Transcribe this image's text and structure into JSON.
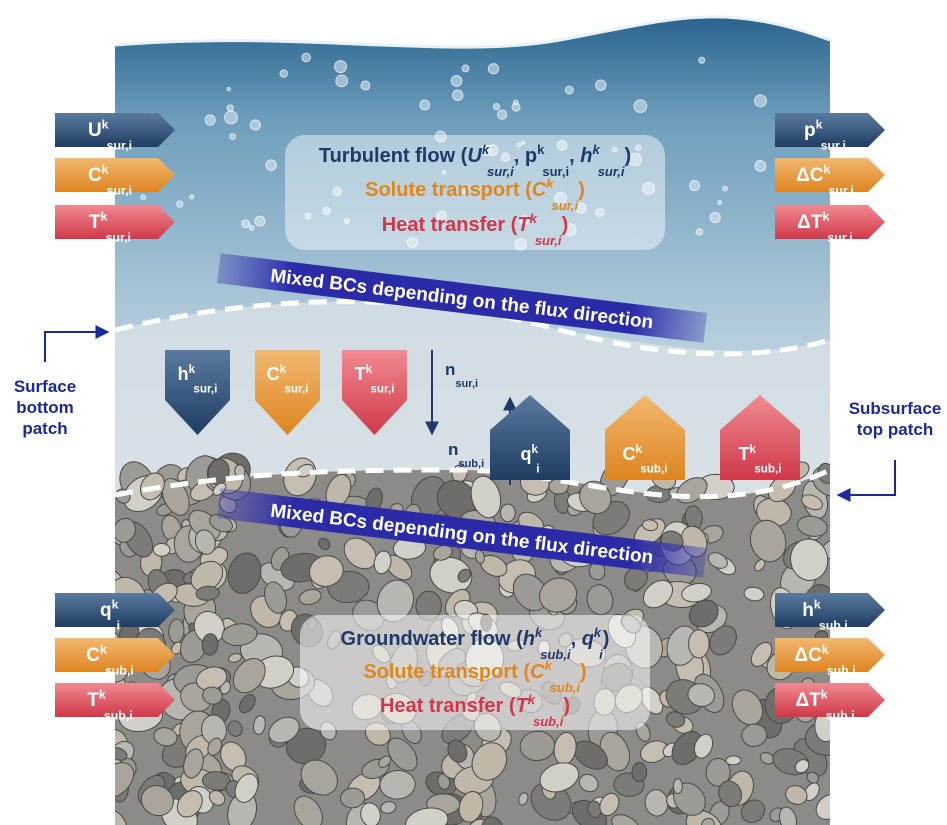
{
  "surface": {
    "left": [
      {
        "base": "U",
        "sup": "k",
        "sub": "sur,i"
      },
      {
        "base": "C",
        "sup": "k",
        "sub": "sur,i"
      },
      {
        "base": "T",
        "sup": "k",
        "sub": "sur,i"
      }
    ],
    "right": [
      {
        "base": "p",
        "sup": "k",
        "sub": "sur,i"
      },
      {
        "base": "ΔC",
        "sup": "k",
        "sub": "sur,i"
      },
      {
        "base": "ΔT",
        "sup": "k",
        "sub": "sur,i"
      }
    ],
    "lines": [
      {
        "segments": [
          "Turbulent flow (",
          {
            "base": "U",
            "sup": "k",
            "sub": "sur,i",
            "italic": true
          },
          ", ",
          {
            "base": "p",
            "sup": "k",
            "sub": "sur,i"
          },
          ", ",
          {
            "base": "h",
            "sup": "k",
            "sub": "sur,i",
            "italic": true
          },
          ")"
        ]
      },
      {
        "segments": [
          "Solute transport (",
          {
            "base": "C",
            "sup": "k",
            "sub": "sur,i",
            "italic": true
          },
          ")"
        ]
      },
      {
        "segments": [
          "Heat transfer (",
          {
            "base": "T",
            "sup": "k",
            "sub": "sur,i",
            "italic": true
          },
          ")"
        ]
      }
    ]
  },
  "interface": {
    "band_top": "Mixed BCs depending on the flux direction",
    "band_bottom": "Mixed BCs depending on the flux direction",
    "surface_side": [
      {
        "base": "h",
        "sup": "k",
        "sub": "sur,i"
      },
      {
        "base": "C",
        "sup": "k",
        "sub": "sur,i"
      },
      {
        "base": "T",
        "sup": "k",
        "sub": "sur,i"
      }
    ],
    "subsurface_side": [
      {
        "base": "q",
        "sup": "k",
        "sub": "i"
      },
      {
        "base": "C",
        "sup": "k",
        "sub": "sub,i"
      },
      {
        "base": "T",
        "sup": "k",
        "sub": "sub,i"
      }
    ],
    "normal_sur": {
      "base": "n",
      "sub": "sur,i"
    },
    "normal_sub": {
      "base": "n",
      "sub": "sub,i"
    }
  },
  "labels": {
    "surface_patch": [
      "Surface",
      "bottom",
      "patch"
    ],
    "subsurface_patch": [
      "Subsurface",
      "top patch"
    ]
  },
  "subsurface": {
    "left": [
      {
        "base": "q",
        "sup": "k",
        "sub": "i"
      },
      {
        "base": "C",
        "sup": "k",
        "sub": "sub,i"
      },
      {
        "base": "T",
        "sup": "k",
        "sub": "sub,i"
      }
    ],
    "right": [
      {
        "base": "h",
        "sup": "k",
        "sub": "sub,i"
      },
      {
        "base": "ΔC",
        "sup": "k",
        "sub": "sub,i"
      },
      {
        "base": "ΔT",
        "sup": "k",
        "sub": "sub,i"
      }
    ],
    "lines": [
      {
        "segments": [
          "Groundwater flow (",
          {
            "base": "h",
            "sup": "k",
            "sub": "sub,i",
            "italic": true
          },
          ", ",
          {
            "base": "q",
            "sup": "k",
            "sub": "i",
            "italic": true
          },
          ")"
        ]
      },
      {
        "segments": [
          "Solute transport (",
          {
            "base": "C",
            "sup": "k",
            "sub": "sub,i",
            "italic": true
          },
          ")"
        ]
      },
      {
        "segments": [
          "Heat transfer (",
          {
            "base": "T",
            "sup": "k",
            "sub": "sub,i",
            "italic": true
          },
          ")"
        ]
      }
    ]
  }
}
